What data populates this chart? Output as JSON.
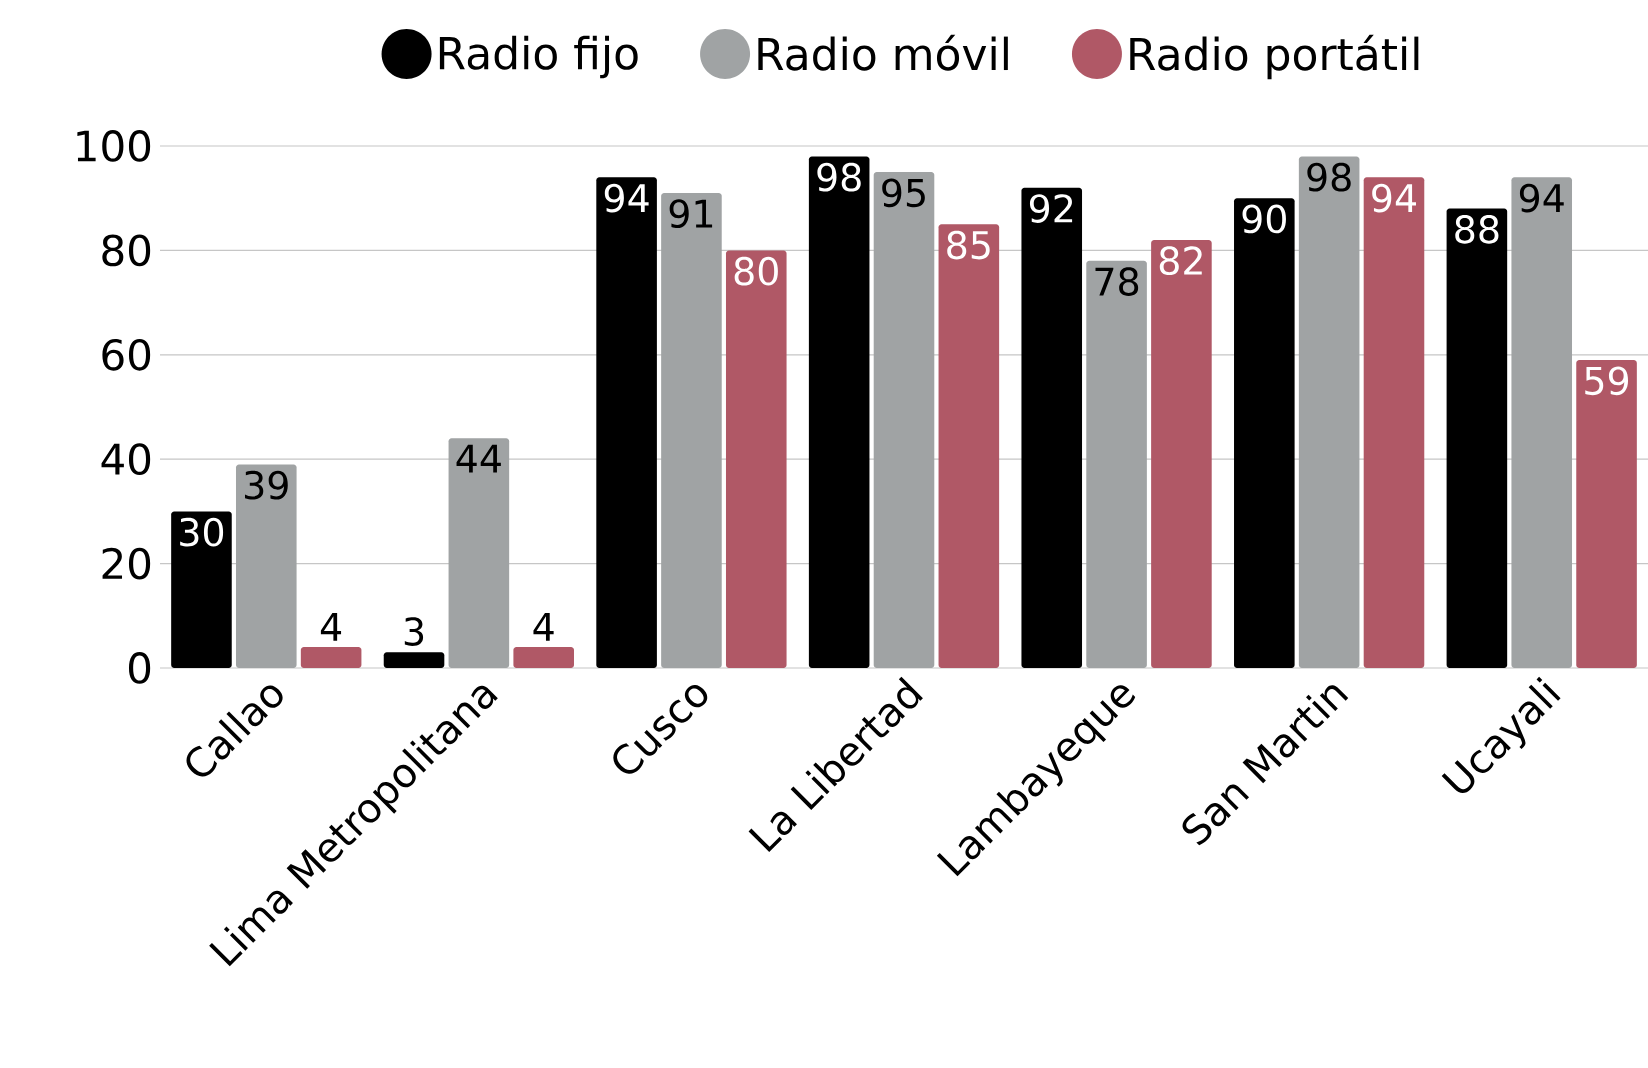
{
  "chart_data": {
    "type": "bar",
    "categories": [
      "Callao",
      "Lima Metropolitana",
      "Cusco",
      "La Libertad",
      "Lambayeque",
      "San Martin",
      "Ucayali"
    ],
    "series": [
      {
        "name": "Radio fijo",
        "color": "#000000",
        "values": [
          30,
          3,
          94,
          98,
          92,
          90,
          88
        ]
      },
      {
        "name": "Radio móvil",
        "color": "#a0a3a4",
        "values": [
          39,
          44,
          91,
          95,
          78,
          98,
          94
        ]
      },
      {
        "name": "Radio portátil",
        "color": "#b05866",
        "values": [
          4,
          4,
          80,
          85,
          82,
          94,
          59
        ]
      }
    ],
    "ylim": [
      0,
      100
    ],
    "yticks": [
      0,
      20,
      40,
      60,
      80,
      100
    ],
    "grid": "y",
    "legend": "top",
    "data_labels": true
  }
}
